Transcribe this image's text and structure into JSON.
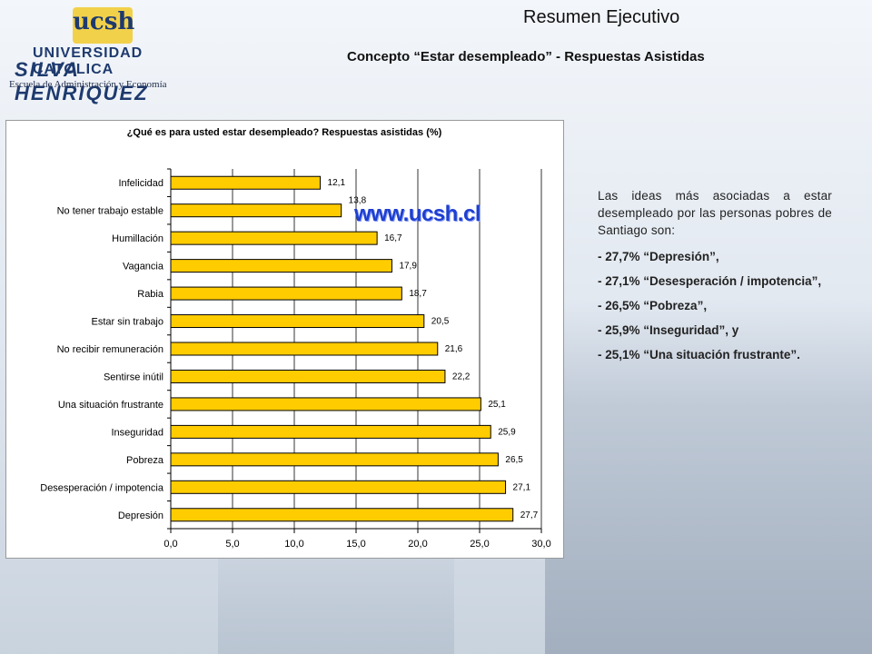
{
  "header": {
    "title": "Resumen Ejecutivo",
    "subtitle": "Concepto “Estar desempleado” - Respuestas Asistidas"
  },
  "logo": {
    "mark": "ucsh",
    "line1": "UNIVERSIDAD CATOLICA",
    "line2": "SILVA HENRIQUEZ",
    "school": "Escuela de Administración y Economía"
  },
  "watermark": "www.ucsh.cl",
  "chart_data": {
    "type": "bar",
    "orientation": "horizontal",
    "title": "¿Qué es para usted estar desempleado? Respuestas asistidas (%)",
    "categories": [
      "Infelicidad",
      "No tener trabajo estable",
      "Humillación",
      "Vagancia",
      "Rabia",
      "Estar sin trabajo",
      "No recibir remuneración",
      "Sentirse inútil",
      "Una situación frustrante",
      "Inseguridad",
      "Pobreza",
      "Desesperación / impotencia",
      "Depresión"
    ],
    "values": [
      12.1,
      13.8,
      16.7,
      17.9,
      18.7,
      20.5,
      21.6,
      22.2,
      25.1,
      25.9,
      26.5,
      27.1,
      27.7
    ],
    "labels": [
      "12,1",
      "13,8",
      "16,7",
      "17,9",
      "18,7",
      "20,5",
      "21,6",
      "22,2",
      "25,1",
      "25,9",
      "26,5",
      "27,1",
      "27,7"
    ],
    "xlim": [
      0,
      30
    ],
    "xticks": [
      "0,0",
      "5,0",
      "10,0",
      "15,0",
      "20,0",
      "25,0",
      "30,0"
    ],
    "grid": true,
    "bar_color": "#ffcc00",
    "bar_border": "#000000"
  },
  "side_panel": {
    "intro": "Las ideas más asociadas a estar desempleado por las personas pobres de Santiago son:",
    "items": [
      {
        "pct": "- 27,7%",
        "desc": "“Depresión”,"
      },
      {
        "pct": "- 27,1%",
        "desc": "“Desesperación / impotencia”,"
      },
      {
        "pct": "- 26,5%",
        "desc": "“Pobreza”,"
      },
      {
        "pct": "- 25,9%",
        "desc": "“Inseguridad”, y"
      },
      {
        "pct": "- 25,1%",
        "desc": "“Una situación frustrante”."
      }
    ]
  }
}
